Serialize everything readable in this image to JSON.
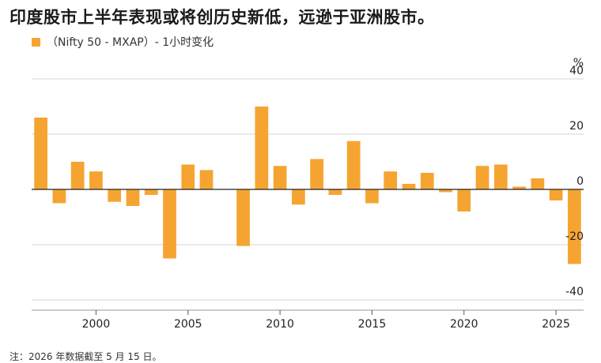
{
  "title": "印度股市上半年表现或将创历史新低，远逊于亚洲股市。",
  "legend": {
    "label": "（Nifty 50 - MXAP）- 1小时变化",
    "color": "#F6A431"
  },
  "note": "注：2026 年数据截至 5 月 15 日。",
  "chart_data": {
    "type": "bar",
    "title": "印度股市上半年表现或将创历史新低，远逊于亚洲股市。",
    "ylabel": "%",
    "xlabel": "",
    "ylim": [
      -40,
      40
    ],
    "yticks": [
      40,
      20,
      0,
      -20,
      -40
    ],
    "xticks": [
      2000,
      2005,
      2010,
      2015,
      2020,
      2025
    ],
    "xlim": [
      1996.5,
      2026.5
    ],
    "grid": true,
    "legend_position": "top-left",
    "series": [
      {
        "name": "（Nifty 50 - MXAP）- 1小时变化",
        "color": "#F6A431",
        "x": [
          1997,
          1998,
          1999,
          2000,
          2001,
          2002,
          2003,
          2004,
          2005,
          2006,
          2007,
          2008,
          2009,
          2010,
          2011,
          2012,
          2013,
          2014,
          2015,
          2016,
          2017,
          2018,
          2019,
          2020,
          2021,
          2022,
          2023,
          2024,
          2025,
          2026
        ],
        "values": [
          26,
          -5,
          10,
          6.5,
          -4.5,
          -6,
          -2,
          -25,
          9,
          7,
          0,
          -20.5,
          30,
          8.5,
          -5.5,
          11,
          -2,
          17.5,
          -5,
          6.5,
          2,
          6,
          -1,
          -8,
          8.5,
          9,
          1,
          4,
          -4,
          -27
        ]
      }
    ]
  }
}
